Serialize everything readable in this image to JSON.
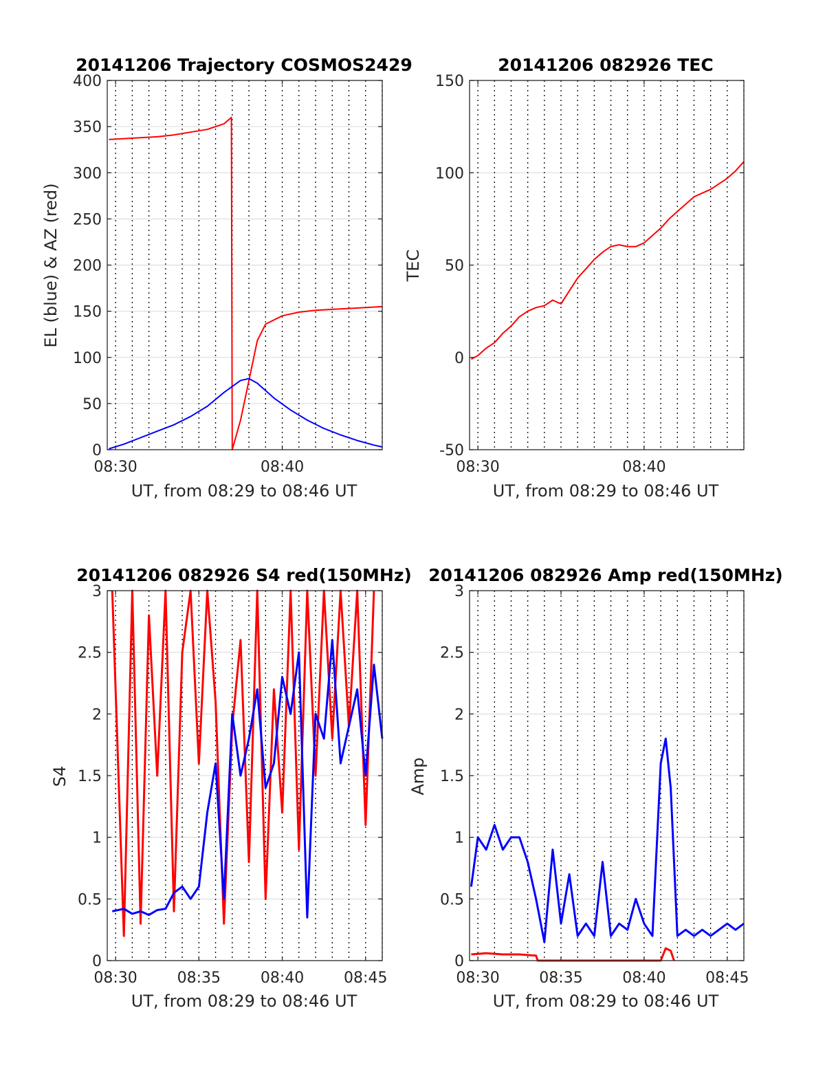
{
  "panels": [
    {
      "id": "trajectory",
      "title": "20141206 Trajectory COSMOS2429",
      "ylabel": "EL (blue) & AZ (red)",
      "xlabel": "UT, from 08:29 to 08:46 UT",
      "ylim": [
        0,
        400
      ],
      "yticks": [
        "0",
        "50",
        "100",
        "150",
        "200",
        "250",
        "300",
        "350",
        "400"
      ],
      "xticks": [
        "08:30",
        "08:40"
      ]
    },
    {
      "id": "tec",
      "title": "20141206 082926 TEC",
      "ylabel": "TEC",
      "xlabel": "UT, from 08:29 to 08:46 UT",
      "ylim": [
        -50,
        150
      ],
      "yticks": [
        "-50",
        "0",
        "50",
        "100",
        "150"
      ],
      "xticks": [
        "08:30",
        "08:40"
      ]
    },
    {
      "id": "s4",
      "title": "20141206 082926 S4 red(150MHz)",
      "ylabel": "S4",
      "xlabel": "UT, from 08:29 to 08:46 UT",
      "ylim": [
        0,
        3
      ],
      "yticks": [
        "0",
        "0.5",
        "1",
        "1.5",
        "2",
        "2.5",
        "3"
      ],
      "xticks": [
        "08:30",
        "08:35",
        "08:40",
        "08:45"
      ]
    },
    {
      "id": "amp",
      "title": "20141206 082926 Amp red(150MHz)",
      "ylabel": "Amp",
      "xlabel": "UT, from 08:29 to 08:46 UT",
      "ylim": [
        0,
        3
      ],
      "yticks": [
        "0",
        "0.5",
        "1",
        "1.5",
        "2",
        "2.5",
        "3"
      ],
      "xticks": [
        "08:30",
        "08:35",
        "08:40",
        "08:45"
      ]
    }
  ],
  "colors": {
    "red": "#ff0000",
    "blue": "#0000ff",
    "axis": "#262626",
    "grid": "#d9d9d9"
  },
  "chart_data": [
    {
      "type": "line",
      "title": "20141206 Trajectory COSMOS2429",
      "xlabel": "UT, from 08:29 to 08:46 UT",
      "ylabel": "EL (blue) & AZ (red)",
      "x_unit": "minutes after 08:00 UT",
      "xlim": [
        29.5,
        46.0
      ],
      "ylim": [
        0,
        400
      ],
      "grid": "x dotted, y solid",
      "series": [
        {
          "name": "AZ (red)",
          "color": "red",
          "x": [
            29.6,
            30.5,
            31.5,
            32.5,
            33.5,
            34.5,
            35.5,
            36.5,
            36.95,
            37.0,
            37.5,
            38.0,
            38.5,
            39.0,
            40.0,
            41.0,
            42.0,
            43.0,
            44.0,
            45.0,
            46.0
          ],
          "y": [
            336,
            337,
            338,
            339,
            341,
            344,
            347,
            353,
            360,
            0,
            32,
            75,
            118,
            136,
            145,
            149,
            151,
            152,
            153,
            154,
            155
          ]
        },
        {
          "name": "EL (blue)",
          "color": "blue",
          "x": [
            29.6,
            30.5,
            31.5,
            32.5,
            33.5,
            34.5,
            35.5,
            36.5,
            37.5,
            38.0,
            38.5,
            39.5,
            40.5,
            41.5,
            42.5,
            43.5,
            44.5,
            45.5,
            46.0
          ],
          "y": [
            1,
            6,
            13,
            20,
            27,
            36,
            47,
            62,
            75,
            77,
            72,
            56,
            43,
            32,
            23,
            16,
            10,
            5,
            3
          ]
        }
      ]
    },
    {
      "type": "line",
      "title": "20141206 082926 TEC",
      "xlabel": "UT, from 08:29 to 08:46 UT",
      "ylabel": "TEC",
      "x_unit": "minutes after 08:00 UT",
      "xlim": [
        29.5,
        46.0
      ],
      "ylim": [
        -50,
        150
      ],
      "series": [
        {
          "name": "TEC",
          "color": "red",
          "x": [
            29.6,
            30.0,
            30.5,
            31.0,
            31.5,
            32.0,
            32.5,
            33.0,
            33.5,
            34.0,
            34.5,
            35.0,
            35.5,
            36.0,
            36.5,
            37.0,
            37.5,
            38.0,
            38.5,
            39.0,
            39.5,
            40.0,
            40.5,
            41.0,
            41.5,
            42.0,
            42.5,
            43.0,
            43.5,
            44.0,
            44.5,
            45.0,
            45.5,
            46.0
          ],
          "y": [
            -1,
            1,
            5,
            8,
            13,
            17,
            22,
            25,
            27,
            28,
            31,
            29,
            36,
            43,
            48,
            53,
            57,
            60,
            61,
            60,
            60,
            62,
            66,
            70,
            75,
            79,
            83,
            87,
            89,
            91,
            94,
            97,
            101,
            106
          ]
        }
      ]
    },
    {
      "type": "line",
      "title": "20141206 082926 S4 red(150MHz)",
      "xlabel": "UT, from 08:29 to 08:46 UT",
      "ylabel": "S4",
      "x_unit": "minutes after 08:00 UT",
      "xlim": [
        29.5,
        46.0
      ],
      "ylim": [
        0,
        3
      ],
      "series": [
        {
          "name": "S4 red(150MHz)",
          "color": "red",
          "x": [
            29.8,
            30.5,
            31.0,
            31.5,
            32.0,
            32.5,
            33.0,
            33.5,
            34.0,
            34.5,
            35.0,
            35.5,
            36.0,
            36.5,
            37.0,
            37.5,
            38.0,
            38.5,
            39.0,
            39.5,
            40.0,
            40.5,
            41.0,
            41.5,
            42.0,
            42.5,
            43.0,
            43.5,
            44.0,
            44.5,
            45.0,
            45.5
          ],
          "y": [
            3.0,
            0.2,
            3.0,
            0.3,
            2.8,
            1.5,
            3.0,
            0.4,
            2.5,
            3.0,
            1.6,
            3.0,
            2.1,
            0.3,
            1.9,
            2.6,
            0.8,
            3.0,
            0.5,
            2.2,
            1.2,
            3.0,
            0.9,
            3.0,
            1.5,
            3.0,
            1.8,
            3.0,
            1.9,
            3.0,
            1.1,
            3.0
          ]
        },
        {
          "name": "S4 blue",
          "color": "blue",
          "x": [
            29.8,
            30.5,
            31.0,
            31.5,
            32.0,
            32.5,
            33.0,
            33.5,
            34.0,
            34.5,
            35.0,
            35.5,
            36.0,
            36.5,
            37.0,
            37.5,
            38.0,
            38.5,
            39.0,
            39.5,
            40.0,
            40.5,
            41.0,
            41.5,
            42.0,
            42.5,
            43.0,
            43.5,
            44.0,
            44.5,
            45.0,
            45.5,
            46.0
          ],
          "y": [
            0.4,
            0.42,
            0.38,
            0.4,
            0.37,
            0.41,
            0.42,
            0.55,
            0.6,
            0.5,
            0.6,
            1.2,
            1.6,
            0.5,
            2.0,
            1.5,
            1.8,
            2.2,
            1.4,
            1.6,
            2.3,
            2.0,
            2.5,
            0.35,
            2.0,
            1.8,
            2.6,
            1.6,
            1.9,
            2.2,
            1.5,
            2.4,
            1.8
          ]
        }
      ]
    },
    {
      "type": "line",
      "title": "20141206 082926 Amp red(150MHz)",
      "xlabel": "UT, from 08:29 to 08:46 UT",
      "ylabel": "Amp",
      "x_unit": "minutes after 08:00 UT",
      "xlim": [
        29.5,
        46.0
      ],
      "ylim": [
        0,
        3
      ],
      "series": [
        {
          "name": "Amp red(150MHz)",
          "color": "red",
          "x": [
            29.6,
            30.5,
            31.5,
            32.5,
            33.5,
            33.6,
            41.0,
            41.3,
            41.6,
            41.8
          ],
          "y": [
            0.05,
            0.06,
            0.05,
            0.05,
            0.04,
            0.0,
            0.0,
            0.1,
            0.08,
            0.0
          ]
        },
        {
          "name": "Amp blue",
          "color": "blue",
          "x": [
            29.6,
            30.0,
            30.5,
            31.0,
            31.5,
            32.0,
            32.5,
            33.0,
            33.5,
            34.0,
            34.5,
            35.0,
            35.5,
            36.0,
            36.5,
            37.0,
            37.5,
            38.0,
            38.5,
            39.0,
            39.5,
            40.0,
            40.5,
            41.0,
            41.3,
            41.6,
            42.0,
            42.5,
            43.0,
            43.5,
            44.0,
            44.5,
            45.0,
            45.5,
            46.0
          ],
          "y": [
            0.6,
            1.0,
            0.9,
            1.1,
            0.9,
            1.0,
            1.0,
            0.8,
            0.5,
            0.15,
            0.9,
            0.3,
            0.7,
            0.2,
            0.3,
            0.2,
            0.8,
            0.2,
            0.3,
            0.25,
            0.5,
            0.3,
            0.2,
            1.6,
            1.8,
            1.4,
            0.2,
            0.25,
            0.2,
            0.25,
            0.2,
            0.25,
            0.3,
            0.25,
            0.3
          ]
        }
      ]
    }
  ]
}
